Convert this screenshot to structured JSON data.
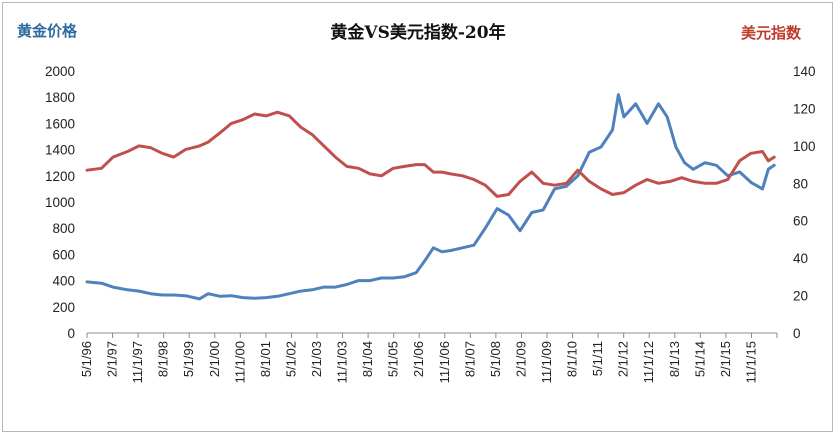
{
  "chart_data": {
    "type": "line",
    "title": "黄金VS美元指数-20年",
    "left_axis_title": "黄金价格",
    "right_axis_title": "美元指数",
    "left_ylim": [
      0,
      2000
    ],
    "left_ticks": [
      0,
      200,
      400,
      600,
      800,
      1000,
      1200,
      1400,
      1600,
      1800,
      2000
    ],
    "right_ylim": [
      0,
      140
    ],
    "right_ticks": [
      0,
      20,
      40,
      60,
      80,
      100,
      120,
      140
    ],
    "x_tick_labels": [
      "5/1/96",
      "2/1/97",
      "11/1/97",
      "8/1/98",
      "5/1/99",
      "2/1/00",
      "11/1/00",
      "8/1/01",
      "5/1/02",
      "2/1/03",
      "11/1/03",
      "8/1/04",
      "5/1/05",
      "2/1/06",
      "11/1/06",
      "8/1/07",
      "5/1/08",
      "2/1/09",
      "11/1/09",
      "8/1/10",
      "5/1/11",
      "2/1/12",
      "11/1/12",
      "8/1/13",
      "5/1/14",
      "2/1/15",
      "11/1/15"
    ],
    "grid": false,
    "colors": {
      "gold": "#4f81bd",
      "usd": "#c0504d",
      "left_title": "#2e6b9e",
      "right_title": "#c0392b"
    },
    "series": [
      {
        "name": "",
        "axis": "left",
        "color": "#4f81bd",
        "x": [
          1996.33,
          1996.75,
          1997.08,
          1997.5,
          1997.83,
          1998.17,
          1998.5,
          1998.83,
          1999.17,
          1999.58,
          1999.83,
          2000.17,
          2000.5,
          2000.83,
          2001.17,
          2001.5,
          2001.83,
          2002.17,
          2002.5,
          2002.83,
          2003.17,
          2003.5,
          2003.83,
          2004.17,
          2004.5,
          2004.83,
          2005.17,
          2005.5,
          2005.83,
          2006.08,
          2006.33,
          2006.58,
          2006.83,
          2007.17,
          2007.5,
          2007.83,
          2008.17,
          2008.5,
          2008.83,
          2009.17,
          2009.5,
          2009.83,
          2010.17,
          2010.5,
          2010.83,
          2011.17,
          2011.5,
          2011.67,
          2011.83,
          2012.17,
          2012.5,
          2012.83,
          2013.08,
          2013.33,
          2013.58,
          2013.83,
          2014.17,
          2014.5,
          2014.83,
          2015.17,
          2015.5,
          2015.83,
          2016.0,
          2016.17
        ],
        "values": [
          390,
          380,
          350,
          330,
          320,
          300,
          290,
          290,
          285,
          260,
          300,
          280,
          285,
          270,
          265,
          270,
          280,
          300,
          320,
          330,
          350,
          350,
          370,
          400,
          400,
          420,
          420,
          430,
          460,
          550,
          650,
          620,
          630,
          650,
          670,
          800,
          950,
          900,
          780,
          920,
          940,
          1100,
          1120,
          1200,
          1380,
          1420,
          1550,
          1820,
          1650,
          1750,
          1600,
          1750,
          1650,
          1420,
          1300,
          1250,
          1300,
          1280,
          1200,
          1230,
          1150,
          1100,
          1250,
          1280
        ]
      },
      {
        "name": "",
        "axis": "right",
        "color": "#c0504d",
        "x": [
          1996.33,
          1996.75,
          1997.08,
          1997.5,
          1997.83,
          1998.17,
          1998.5,
          1998.83,
          1999.17,
          1999.58,
          1999.83,
          2000.17,
          2000.5,
          2000.83,
          2001.17,
          2001.5,
          2001.83,
          2002.17,
          2002.5,
          2002.83,
          2003.17,
          2003.5,
          2003.83,
          2004.17,
          2004.5,
          2004.83,
          2005.17,
          2005.5,
          2005.83,
          2006.08,
          2006.33,
          2006.58,
          2006.83,
          2007.17,
          2007.5,
          2007.83,
          2008.17,
          2008.5,
          2008.83,
          2009.17,
          2009.5,
          2009.83,
          2010.17,
          2010.5,
          2010.83,
          2011.17,
          2011.5,
          2011.83,
          2012.17,
          2012.5,
          2012.83,
          2013.17,
          2013.5,
          2013.83,
          2014.17,
          2014.5,
          2014.83,
          2015.17,
          2015.5,
          2015.83,
          2016.0,
          2016.17
        ],
        "values": [
          87,
          88,
          94,
          97,
          100,
          99,
          96,
          94,
          98,
          100,
          102,
          107,
          112,
          114,
          117,
          116,
          118,
          116,
          110,
          106,
          100,
          94,
          89,
          88,
          85,
          84,
          88,
          89,
          90,
          90,
          86,
          86,
          85,
          84,
          82,
          79,
          73,
          74,
          81,
          86,
          80,
          79,
          80,
          87,
          81,
          77,
          74,
          75,
          79,
          82,
          80,
          81,
          83,
          81,
          80,
          80,
          82,
          92,
          96,
          97,
          92,
          94
        ]
      }
    ]
  }
}
